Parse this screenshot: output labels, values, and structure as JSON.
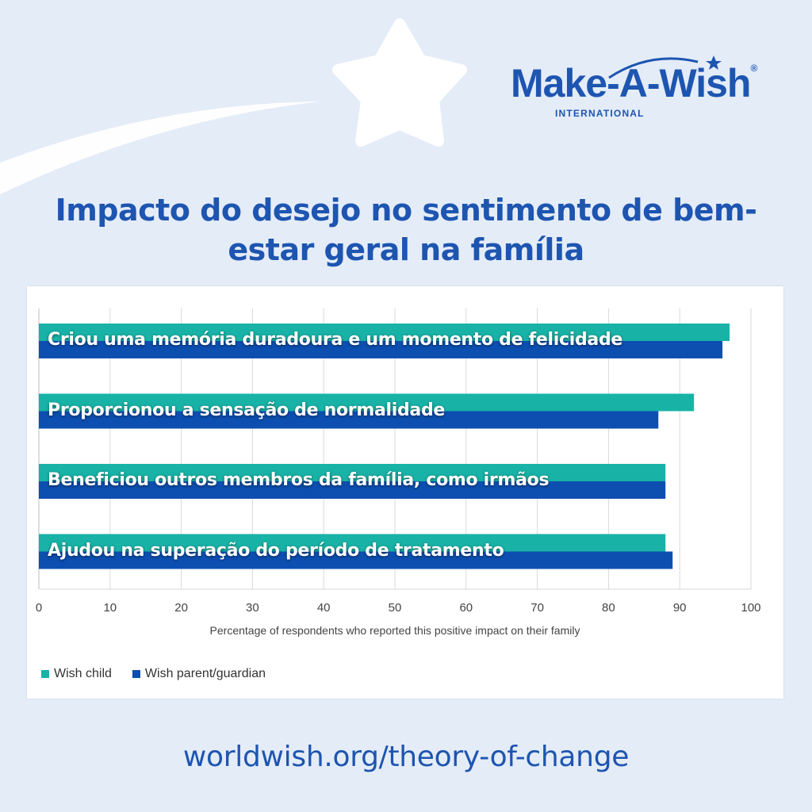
{
  "brand": {
    "name": "Make-A-Wish",
    "subtitle": "INTERNATIONAL",
    "registered_mark": "®"
  },
  "title": "Impacto do desejo no sentimento de bem-estar geral na família",
  "footer_url": "worldwish.org/theory-of-change",
  "colors": {
    "background": "#e4ecf8",
    "brand_blue": "#1d55b0",
    "wish_child": "#18b2a6",
    "wish_parent": "#0d4fb0"
  },
  "icons": [
    "star-icon",
    "shooting-star-trail-icon",
    "logo-star-icon"
  ],
  "chart_data": {
    "type": "bar",
    "orientation": "horizontal",
    "title": "",
    "categories": [
      "Criou uma memória duradoura e um momento de felicidade",
      "Proporcionou a sensação de normalidade",
      "Beneficiou outros membros da família, como irmãos",
      "Ajudou na superação do período de tratamento"
    ],
    "series": [
      {
        "name": "Wish child",
        "values": [
          97,
          92,
          88,
          88
        ],
        "color": "#18b2a6"
      },
      {
        "name": "Wish parent/guardian",
        "values": [
          96,
          87,
          88,
          89
        ],
        "color": "#0d4fb0"
      }
    ],
    "xlabel": "Percentage of respondents who reported this positive impact on their family",
    "ylabel": "",
    "xlim": [
      0,
      100
    ],
    "xticks": [
      "0",
      "10",
      "20",
      "30",
      "40",
      "50",
      "60",
      "70",
      "80",
      "90",
      "100"
    ],
    "grid": true,
    "legend_position": "bottom-left"
  }
}
